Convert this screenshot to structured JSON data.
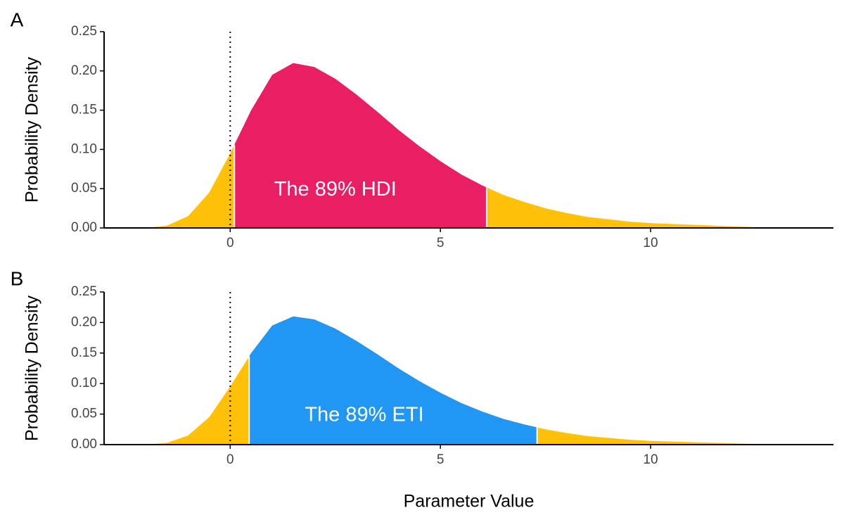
{
  "chart_data": [
    {
      "type": "area",
      "panel_label": "A",
      "ylabel": "Probability Density",
      "annotation": "The 89% HDI",
      "x": [
        -2,
        -1.5,
        -1,
        -0.5,
        0,
        0.5,
        1,
        1.5,
        2,
        2.5,
        3,
        3.5,
        4,
        4.5,
        5,
        5.5,
        6,
        6.5,
        7,
        7.5,
        8,
        8.5,
        9,
        9.5,
        10,
        10.5,
        11,
        11.5,
        12,
        12.5,
        13
      ],
      "values": [
        0,
        0.003,
        0.015,
        0.045,
        0.095,
        0.15,
        0.195,
        0.21,
        0.205,
        0.19,
        0.17,
        0.148,
        0.125,
        0.104,
        0.085,
        0.068,
        0.054,
        0.042,
        0.033,
        0.025,
        0.019,
        0.014,
        0.011,
        0.008,
        0.006,
        0.005,
        0.004,
        0.003,
        0.002,
        0.001,
        0
      ],
      "interval": [
        0.1,
        6.1
      ],
      "interval_color": "#e91e63",
      "tail_color": "#ffc107",
      "reference_line_x": 0,
      "xlim": [
        -3,
        14.35
      ],
      "ylim": [
        0,
        0.25
      ],
      "xticks": [
        0,
        5,
        10
      ],
      "yticks": [
        {
          "value": 0,
          "label": "0.00"
        },
        {
          "value": 0.05,
          "label": "0.05"
        },
        {
          "value": 0.1,
          "label": "0.10"
        },
        {
          "value": 0.15,
          "label": "0.15"
        },
        {
          "value": 0.2,
          "label": "0.20"
        },
        {
          "value": 0.25,
          "label": "0.25"
        }
      ]
    },
    {
      "type": "area",
      "panel_label": "B",
      "ylabel": "Probability Density",
      "annotation": "The 89% ETI",
      "xlabel": "Parameter Value",
      "x": [
        -2,
        -1.5,
        -1,
        -0.5,
        0,
        0.5,
        1,
        1.5,
        2,
        2.5,
        3,
        3.5,
        4,
        4.5,
        5,
        5.5,
        6,
        6.5,
        7,
        7.5,
        8,
        8.5,
        9,
        9.5,
        10,
        10.5,
        11,
        11.5,
        12,
        12.5,
        13
      ],
      "values": [
        0,
        0.003,
        0.015,
        0.045,
        0.095,
        0.15,
        0.195,
        0.21,
        0.205,
        0.19,
        0.17,
        0.148,
        0.125,
        0.104,
        0.085,
        0.068,
        0.054,
        0.042,
        0.033,
        0.025,
        0.019,
        0.014,
        0.011,
        0.008,
        0.006,
        0.005,
        0.004,
        0.003,
        0.002,
        0.001,
        0
      ],
      "interval": [
        0.45,
        7.3
      ],
      "interval_color": "#2196f3",
      "tail_color": "#ffc107",
      "reference_line_x": 0,
      "xlim": [
        -3,
        14.35
      ],
      "ylim": [
        0,
        0.25
      ],
      "xticks": [
        0,
        5,
        10
      ],
      "yticks": [
        {
          "value": 0,
          "label": "0.00"
        },
        {
          "value": 0.05,
          "label": "0.05"
        },
        {
          "value": 0.1,
          "label": "0.10"
        },
        {
          "value": 0.15,
          "label": "0.15"
        },
        {
          "value": 0.2,
          "label": "0.20"
        },
        {
          "value": 0.25,
          "label": "0.25"
        }
      ]
    }
  ]
}
